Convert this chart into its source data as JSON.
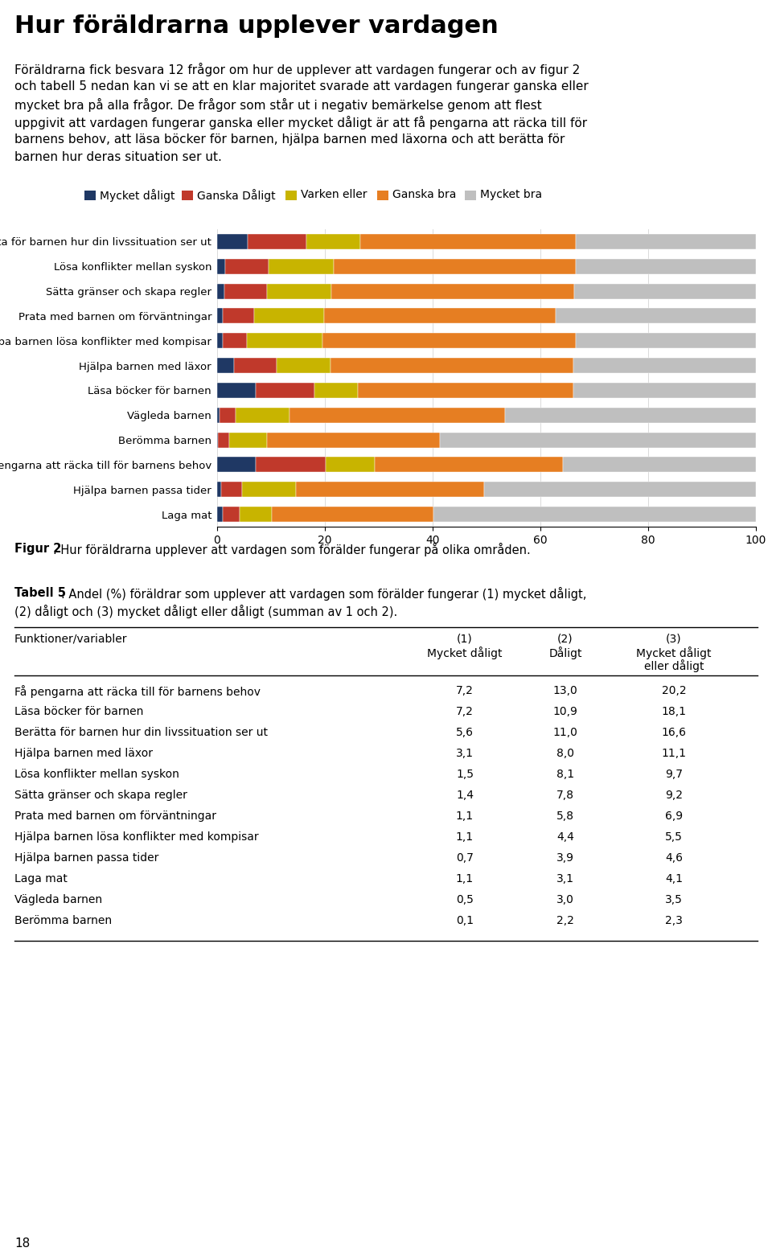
{
  "title": "Hur föräldrarna upplever vardagen",
  "intro_text_lines": [
    "Föräldrarna fick besvara 12 frågor om hur de upplever att vardagen fungerar och av figur 2",
    "och tabell 5 nedan kan vi se att en klar majoritet svarade att vardagen fungerar ganska eller",
    "mycket bra på alla frågor. De frågor som står ut i negativ bemärkelse genom att flest",
    "uppgivit att vardagen fungerar ganska eller mycket dåligt är att få pengarna att räcka till för",
    "barnens behov, att läsa böcker för barnen, hjälpa barnen med läxorna och att berätta för",
    "barnen hur deras situation ser ut."
  ],
  "legend_labels": [
    "Mycket dåligt",
    "Ganska Dåligt",
    "Varken eller",
    "Ganska bra",
    "Mycket bra"
  ],
  "legend_colors": [
    "#1f3864",
    "#c0392b",
    "#c8b400",
    "#e67e22",
    "#bfbfbf"
  ],
  "categories": [
    "Berätta för barnen hur din livssituation ser ut",
    "Lösa konflikter mellan syskon",
    "Sätta gränser och skapa regler",
    "Prata med barnen om förväntningar",
    "Hjälpa barnen lösa konflikter med kompisar",
    "Hjälpa barnen med läxor",
    "Läsa böcker för barnen",
    "Vägleda barnen",
    "Berömma barnen",
    "Få pengarna att räcka till för barnens behov",
    "Hjälpa barnen passa tider",
    "Laga mat"
  ],
  "bar_data": [
    [
      5.6,
      11.0,
      10.0,
      40.0,
      33.4
    ],
    [
      1.5,
      8.1,
      12.0,
      45.0,
      33.4
    ],
    [
      1.4,
      7.8,
      12.0,
      45.0,
      33.8
    ],
    [
      1.1,
      5.8,
      13.0,
      43.0,
      37.1
    ],
    [
      1.1,
      4.4,
      14.0,
      47.0,
      33.5
    ],
    [
      3.1,
      8.0,
      10.0,
      45.0,
      33.9
    ],
    [
      7.2,
      10.9,
      8.0,
      40.0,
      33.9
    ],
    [
      0.5,
      3.0,
      10.0,
      40.0,
      46.5
    ],
    [
      0.1,
      2.2,
      7.0,
      32.0,
      58.7
    ],
    [
      7.2,
      13.0,
      9.0,
      35.0,
      35.8
    ],
    [
      0.7,
      3.9,
      10.0,
      35.0,
      50.4
    ],
    [
      1.1,
      3.1,
      6.0,
      30.0,
      59.8
    ]
  ],
  "colors": [
    "#1f3864",
    "#c0392b",
    "#c8b400",
    "#e67e22",
    "#bfbfbf"
  ],
  "xticks": [
    0,
    20,
    40,
    60,
    80,
    100
  ],
  "fig2_caption_bold": "Figur 2",
  "fig2_caption_rest": ". Hur föräldrarna upplever att vardagen som förälder fungerar på olika områden.",
  "table_title_bold": "Tabell 5",
  "table_title_rest": ". Andel (%) föräldrar som upplever att vardagen som förälder fungerar (1) mycket dåligt,",
  "table_title_line2": "(2) dåligt och (3) mycket dåligt eller dåligt (summan av 1 och 2).",
  "col_header_label": "Funktioner/variabler",
  "col_header_1": "(1)\nMycket dåligt",
  "col_header_2": "(2)\nDåligt",
  "col_header_3": "(3)\nMycket dåligt\neller dåligt",
  "table_rows": [
    [
      "Få pengarna att räcka till för barnens behov",
      "7,2",
      "13,0",
      "20,2"
    ],
    [
      "Läsa böcker för barnen",
      "7,2",
      "10,9",
      "18,1"
    ],
    [
      "Berätta för barnen hur din livssituation ser ut",
      "5,6",
      "11,0",
      "16,6"
    ],
    [
      "Hjälpa barnen med läxor",
      "3,1",
      "8,0",
      "11,1"
    ],
    [
      "Lösa konflikter mellan syskon",
      "1,5",
      "8,1",
      "9,7"
    ],
    [
      "Sätta gränser och skapa regler",
      "1,4",
      "7,8",
      "9,2"
    ],
    [
      "Prata med barnen om förväntningar",
      "1,1",
      "5,8",
      "6,9"
    ],
    [
      "Hjälpa barnen lösa konflikter med kompisar",
      "1,1",
      "4,4",
      "5,5"
    ],
    [
      "Hjälpa barnen passa tider",
      "0,7",
      "3,9",
      "4,6"
    ],
    [
      "Laga mat",
      "1,1",
      "3,1",
      "4,1"
    ],
    [
      "Vägleda barnen",
      "0,5",
      "3,0",
      "3,5"
    ],
    [
      "Berömma barnen",
      "0,1",
      "2,2",
      "2,3"
    ]
  ],
  "page_number": "18"
}
